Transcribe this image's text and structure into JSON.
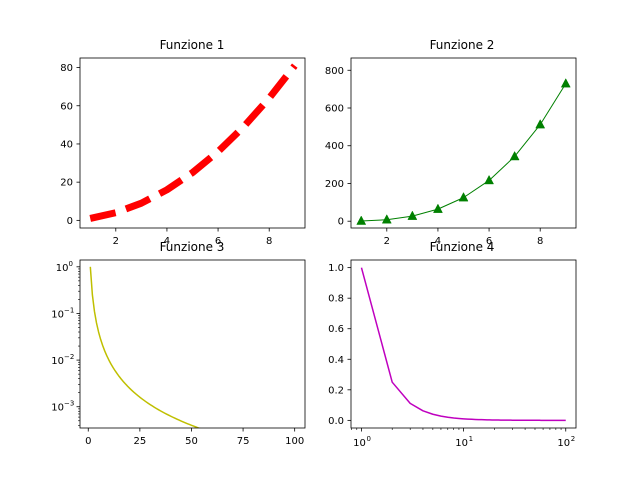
{
  "figure": {
    "background": "#ffffff"
  },
  "chart_data": [
    {
      "id": "f1",
      "type": "line",
      "title": "Funzione 1",
      "xlabel": "",
      "ylabel": "",
      "xscale": "linear",
      "yscale": "linear",
      "xlim": [
        0.6,
        9.4
      ],
      "ylim": [
        -4,
        85
      ],
      "xticks": [
        2,
        4,
        6,
        8
      ],
      "yticks": [
        0,
        20,
        40,
        60,
        80
      ],
      "grid": false,
      "series": [
        {
          "color": "#ff0000",
          "linestyle": "dashed",
          "marker": "none",
          "x": [
            1,
            2,
            3,
            4,
            5,
            6,
            7,
            8,
            9
          ],
          "y": [
            1,
            4,
            9,
            16,
            25,
            36,
            49,
            64,
            81
          ]
        }
      ]
    },
    {
      "id": "f2",
      "type": "line",
      "title": "Funzione 2",
      "xlabel": "",
      "ylabel": "",
      "xscale": "linear",
      "yscale": "linear",
      "xlim": [
        0.6,
        9.4
      ],
      "ylim": [
        -36,
        865
      ],
      "xticks": [
        2,
        4,
        6,
        8
      ],
      "yticks": [
        0,
        200,
        400,
        600,
        800
      ],
      "grid": false,
      "series": [
        {
          "color": "#008000",
          "linestyle": "solid",
          "marker": "triangle-up",
          "x": [
            1,
            2,
            3,
            4,
            5,
            6,
            7,
            8,
            9
          ],
          "y": [
            1,
            8,
            27,
            64,
            125,
            216,
            343,
            512,
            729
          ]
        }
      ]
    },
    {
      "id": "f3",
      "type": "line",
      "title": "Funzione 3",
      "xlabel": "",
      "ylabel": "",
      "xscale": "linear",
      "yscale": "log",
      "xlim": [
        -4,
        105
      ],
      "ylim": [
        0.00035,
        1.4
      ],
      "xticks": [
        0,
        25,
        50,
        75,
        100
      ],
      "ytick_exponents": [
        0,
        -1,
        -2,
        -3
      ],
      "grid": false,
      "series": [
        {
          "color": "#bfbf00",
          "linestyle": "solid",
          "marker": "none",
          "function": "1/x^2",
          "x_range": [
            1,
            100
          ]
        }
      ]
    },
    {
      "id": "f4",
      "type": "line",
      "title": "Funzione 4",
      "xlabel": "",
      "ylabel": "",
      "xscale": "log",
      "yscale": "linear",
      "xlim": [
        0.79,
        126
      ],
      "ylim": [
        -0.05,
        1.05
      ],
      "xtick_exponents": [
        0,
        1,
        2
      ],
      "yticks": [
        0.0,
        0.2,
        0.4,
        0.6,
        0.8,
        1.0
      ],
      "grid": false,
      "series": [
        {
          "color": "#bf00bf",
          "linestyle": "solid",
          "marker": "none",
          "function": "1/x^2",
          "x_range": [
            1,
            100
          ]
        }
      ]
    }
  ]
}
